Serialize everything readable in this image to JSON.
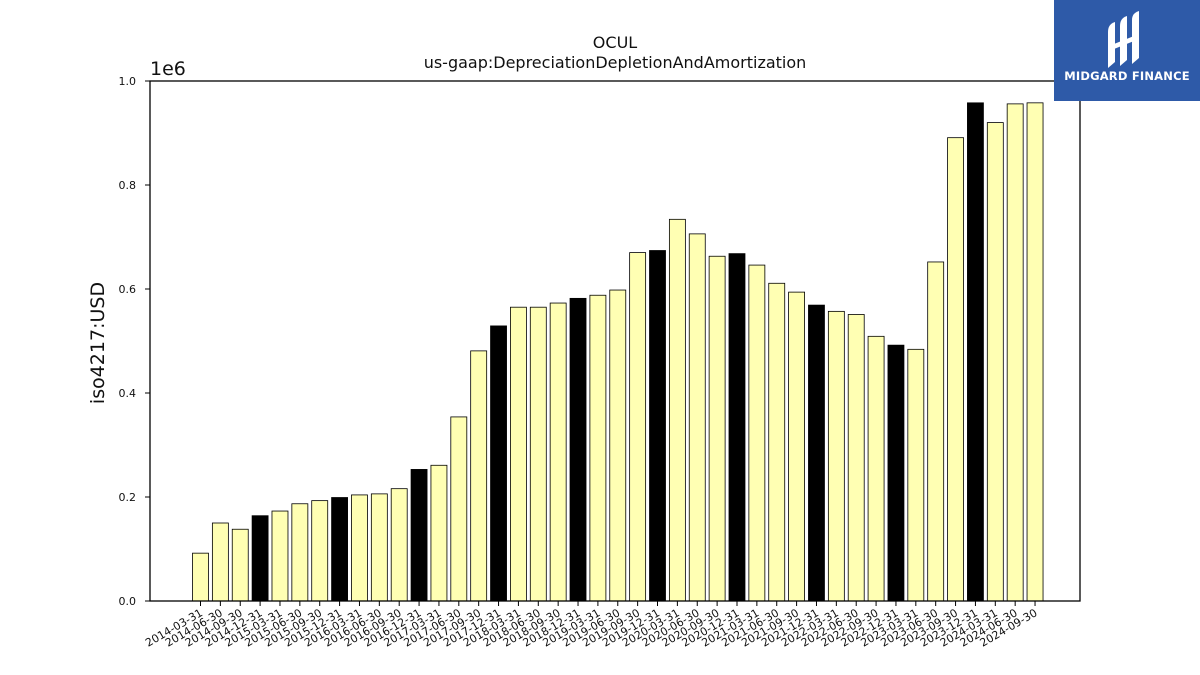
{
  "brand": {
    "name": "MIDGARD FINANCE"
  },
  "chart_data": {
    "type": "bar",
    "title": "OCUL",
    "subtitle": "us-gaap:DepreciationDepletionAndAmortization",
    "xlabel": "",
    "ylabel": "iso4217:USD",
    "y_multiplier_label": "1e6",
    "ylim": [
      0,
      1.0
    ],
    "yticks": [
      "0.0",
      "0.2",
      "0.4",
      "0.6",
      "0.8",
      "1.0"
    ],
    "grid": false,
    "colors": {
      "quarter": "#ffffb3",
      "year_end": "#000000",
      "edge": "#000000"
    },
    "categories": [
      "2014-03-31",
      "2014-06-30",
      "2014-09-30",
      "2014-12-31",
      "2015-03-31",
      "2015-06-30",
      "2015-09-30",
      "2015-12-31",
      "2016-03-31",
      "2016-06-30",
      "2016-09-30",
      "2016-12-31",
      "2017-03-31",
      "2017-06-30",
      "2017-09-30",
      "2017-12-31",
      "2018-03-31",
      "2018-06-30",
      "2018-09-30",
      "2018-12-31",
      "2019-03-31",
      "2019-06-30",
      "2019-09-30",
      "2019-12-31",
      "2020-03-31",
      "2020-06-30",
      "2020-09-30",
      "2020-12-31",
      "2021-03-31",
      "2021-06-30",
      "2021-09-30",
      "2021-12-31",
      "2022-03-31",
      "2022-06-30",
      "2022-09-30",
      "2022-12-31",
      "2023-03-31",
      "2023-06-30",
      "2023-09-30",
      "2023-12-31",
      "2024-03-31",
      "2024-06-30",
      "2024-09-30"
    ],
    "values": [
      0.092,
      0.15,
      0.138,
      0.164,
      0.173,
      0.187,
      0.193,
      0.199,
      0.204,
      0.206,
      0.216,
      0.253,
      0.261,
      0.354,
      0.481,
      0.529,
      0.565,
      0.565,
      0.573,
      0.582,
      0.588,
      0.598,
      0.67,
      0.674,
      0.734,
      0.706,
      0.663,
      0.668,
      0.646,
      0.611,
      0.594,
      0.569,
      0.557,
      0.551,
      0.509,
      0.492,
      0.484,
      0.652,
      0.891,
      0.958,
      0.92,
      0.956,
      0.958
    ],
    "highlight": [
      false,
      false,
      false,
      true,
      false,
      false,
      false,
      true,
      false,
      false,
      false,
      true,
      false,
      false,
      false,
      true,
      false,
      false,
      false,
      true,
      false,
      false,
      false,
      true,
      false,
      false,
      false,
      true,
      false,
      false,
      false,
      true,
      false,
      false,
      false,
      true,
      false,
      false,
      false,
      true,
      false,
      false,
      false
    ]
  }
}
